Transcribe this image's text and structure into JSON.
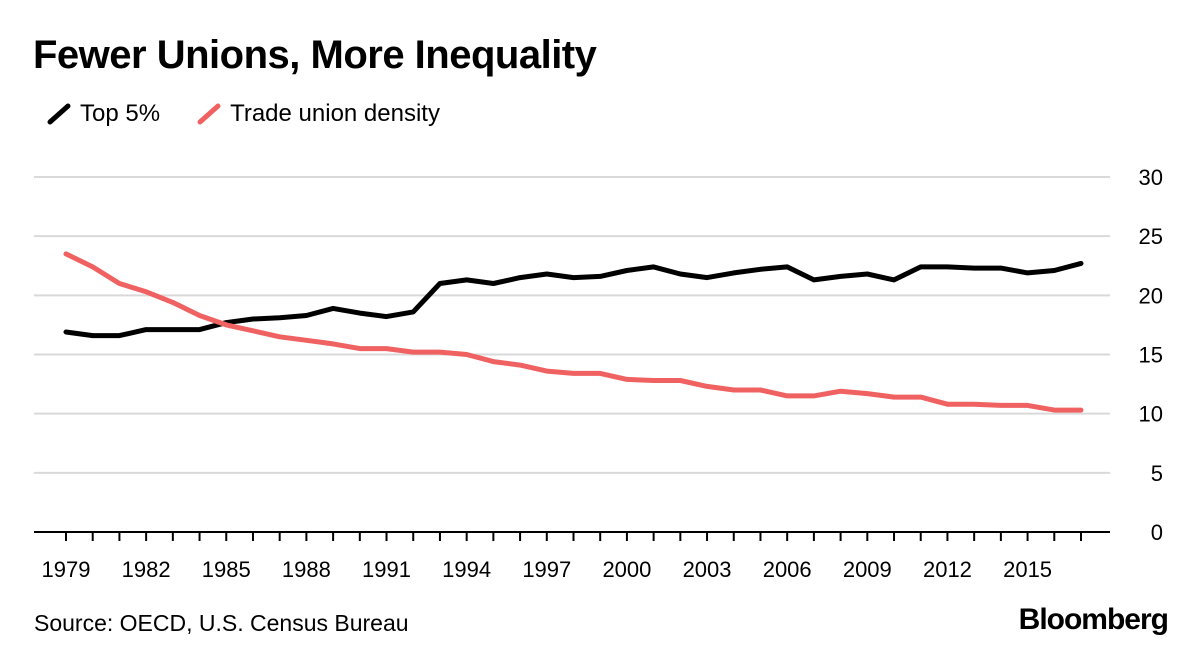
{
  "chart_data": {
    "type": "line",
    "title": "Fewer Unions, More Inequality",
    "xlabel": "",
    "ylabel": "",
    "x_ticks": [
      "1979",
      "1982",
      "1985",
      "1988",
      "1991",
      "1994",
      "1997",
      "2000",
      "2003",
      "2006",
      "2009",
      "2012",
      "2015"
    ],
    "y_ticks": [
      "30",
      "25",
      "20",
      "15",
      "10",
      "5",
      "0"
    ],
    "ylim": [
      0,
      30
    ],
    "xlim": [
      1979,
      2017
    ],
    "grid": true,
    "y_axis_position": "right",
    "legend_position": "top-left",
    "x": [
      1979,
      1980,
      1981,
      1982,
      1983,
      1984,
      1985,
      1986,
      1987,
      1988,
      1989,
      1990,
      1991,
      1992,
      1993,
      1994,
      1995,
      1996,
      1997,
      1998,
      1999,
      2000,
      2001,
      2002,
      2003,
      2004,
      2005,
      2006,
      2007,
      2008,
      2009,
      2010,
      2011,
      2012,
      2013,
      2014,
      2015,
      2016,
      2017
    ],
    "series": [
      {
        "name": "Top 5%",
        "color": "#000000",
        "values": [
          16.9,
          16.6,
          16.6,
          17.1,
          17.1,
          17.1,
          17.7,
          18.0,
          18.1,
          18.3,
          18.9,
          18.5,
          18.2,
          18.6,
          21.0,
          21.3,
          21.0,
          21.5,
          21.8,
          21.5,
          21.6,
          22.1,
          22.4,
          21.8,
          21.5,
          21.9,
          22.2,
          22.4,
          21.3,
          21.6,
          21.8,
          21.3,
          22.4,
          22.4,
          22.3,
          22.3,
          21.9,
          22.1,
          22.7
        ]
      },
      {
        "name": "Trade union density",
        "color": "#f06262",
        "values": [
          23.5,
          22.4,
          21.0,
          20.3,
          19.4,
          18.3,
          17.5,
          17.0,
          16.5,
          16.2,
          15.9,
          15.5,
          15.5,
          15.2,
          15.2,
          15.0,
          14.4,
          14.1,
          13.6,
          13.4,
          13.4,
          12.9,
          12.8,
          12.8,
          12.3,
          12.0,
          12.0,
          11.5,
          11.5,
          11.9,
          11.7,
          11.4,
          11.4,
          10.8,
          10.8,
          10.7,
          10.7,
          10.3,
          10.3
        ]
      }
    ]
  },
  "footer": {
    "source": "Source: OECD, U.S. Census Bureau",
    "brand": "Bloomberg"
  }
}
